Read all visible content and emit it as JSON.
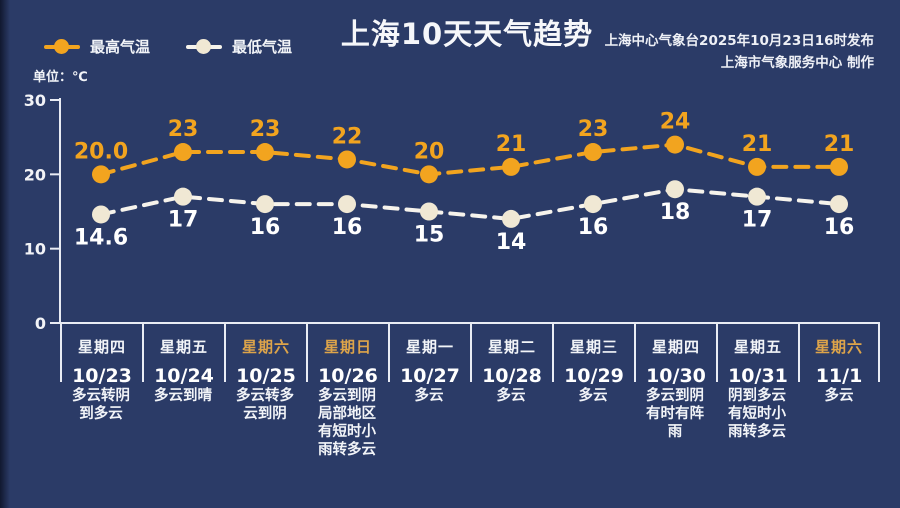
{
  "app": {
    "title": "上海10天天气趋势"
  },
  "header": {
    "publisher_line1": "上海中心气象台2025年10月23日16时发布",
    "publisher_line2": "上海市气象服务中心 制作",
    "unit_label": "单位：℃"
  },
  "legend": {
    "high": "最高气温",
    "low": "最低气温"
  },
  "colors": {
    "background": "#2b3b67",
    "high": "#f2a41f",
    "low_line": "#f6f3ec",
    "low_dot": "#f0e8d4",
    "text": "#ffffff",
    "gold": "#dda44a",
    "axis": "#e9ecf4"
  },
  "chart_data": {
    "type": "line",
    "title": "上海10天天气趋势",
    "categories": [
      "10/23",
      "10/24",
      "10/25",
      "10/26",
      "10/27",
      "10/28",
      "10/29",
      "10/30",
      "10/31",
      "11/1"
    ],
    "series": [
      {
        "name": "最高气温",
        "color": "#f2a41f",
        "dot_color": "#f2a41f",
        "label_position": "above",
        "values": [
          20.0,
          23,
          23,
          22,
          20,
          21,
          23,
          24,
          21,
          21
        ],
        "labels": [
          "20.0",
          "23",
          "23",
          "22",
          "20",
          "21",
          "23",
          "24",
          "21",
          "21"
        ]
      },
      {
        "name": "最低气温",
        "color": "#f6f3ec",
        "dot_color": "#f0e8d4",
        "label_position": "below",
        "values": [
          14.6,
          17,
          16,
          16,
          15,
          14,
          16,
          18,
          17,
          16
        ],
        "labels": [
          "14.6",
          "17",
          "16",
          "16",
          "15",
          "14",
          "16",
          "18",
          "17",
          "16"
        ]
      }
    ],
    "ylabel": "单位：℃",
    "ylim": [
      0,
      30
    ],
    "yticks": [
      0,
      10,
      20,
      30
    ],
    "grid": false,
    "legend_position": "top-left",
    "line_style": "dashed"
  },
  "days": [
    {
      "weekday": "星期四",
      "date": "10/23",
      "weather": "多云转阴到多云",
      "weekend": false
    },
    {
      "weekday": "星期五",
      "date": "10/24",
      "weather": "多云到晴",
      "weekend": false
    },
    {
      "weekday": "星期六",
      "date": "10/25",
      "weather": "多云转多云到阴",
      "weekend": true
    },
    {
      "weekday": "星期日",
      "date": "10/26",
      "weather": "多云到阴局部地区有短时小雨转多云",
      "weekend": true
    },
    {
      "weekday": "星期一",
      "date": "10/27",
      "weather": "多云",
      "weekend": false
    },
    {
      "weekday": "星期二",
      "date": "10/28",
      "weather": "多云",
      "weekend": false
    },
    {
      "weekday": "星期三",
      "date": "10/29",
      "weather": "多云",
      "weekend": false
    },
    {
      "weekday": "星期四",
      "date": "10/30",
      "weather": "多云到阴有时有阵雨",
      "weekend": false
    },
    {
      "weekday": "星期五",
      "date": "10/31",
      "weather": "阴到多云有短时小雨转多云",
      "weekend": false
    },
    {
      "weekday": "星期六",
      "date": "11/1",
      "weather": "多云",
      "weekend": true
    }
  ]
}
